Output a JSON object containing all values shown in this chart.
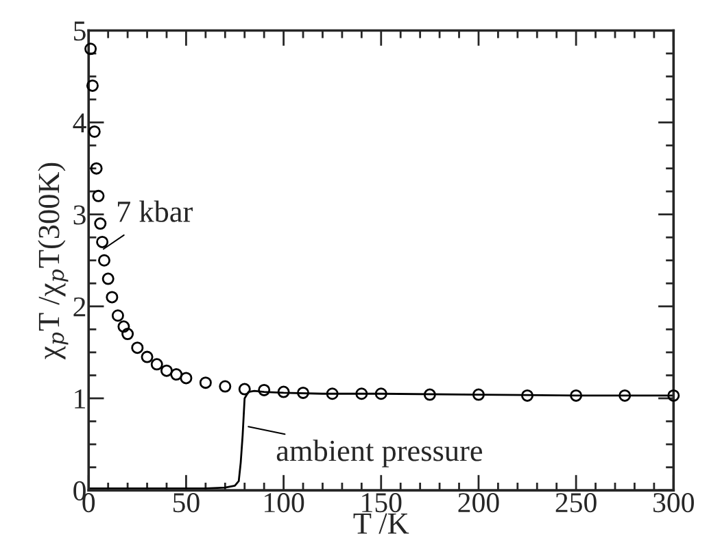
{
  "chart_data": {
    "type": "scatter",
    "xlabel": "T /K",
    "ylabel": "χ$_{p}$T /χ$_{p}$T(300K)",
    "xlim": [
      0,
      300
    ],
    "ylim": [
      0,
      5
    ],
    "xticks": [
      0,
      50,
      100,
      150,
      200,
      250,
      300
    ],
    "yticks": [
      0,
      1,
      2,
      3,
      4,
      5
    ],
    "grid": false,
    "series": [
      {
        "name": "7 kbar",
        "marker": "circle",
        "color": "#000000",
        "x": [
          1,
          2,
          3,
          4,
          5,
          6,
          7,
          8,
          10,
          12,
          15,
          18,
          20,
          25,
          30,
          35,
          40,
          45,
          50,
          60,
          70,
          80,
          90,
          100,
          110,
          125,
          140,
          150,
          175,
          200,
          225,
          250,
          275,
          300
        ],
        "values": [
          4.8,
          4.4,
          3.9,
          3.5,
          3.2,
          2.9,
          2.7,
          2.5,
          2.3,
          2.1,
          1.9,
          1.78,
          1.7,
          1.55,
          1.45,
          1.37,
          1.3,
          1.26,
          1.22,
          1.17,
          1.13,
          1.1,
          1.09,
          1.07,
          1.06,
          1.05,
          1.05,
          1.05,
          1.04,
          1.04,
          1.03,
          1.03,
          1.03,
          1.03
        ]
      },
      {
        "name": "ambient pressure",
        "type": "line",
        "marker": "none",
        "color": "#000000",
        "x": [
          0,
          20,
          40,
          60,
          70,
          75,
          77,
          78,
          79,
          80,
          82,
          85,
          90,
          100,
          120,
          150,
          200,
          250,
          300
        ],
        "values": [
          0.02,
          0.02,
          0.02,
          0.02,
          0.03,
          0.05,
          0.1,
          0.3,
          0.6,
          1.0,
          1.07,
          1.08,
          1.07,
          1.06,
          1.05,
          1.05,
          1.04,
          1.03,
          1.03
        ]
      }
    ]
  }
}
